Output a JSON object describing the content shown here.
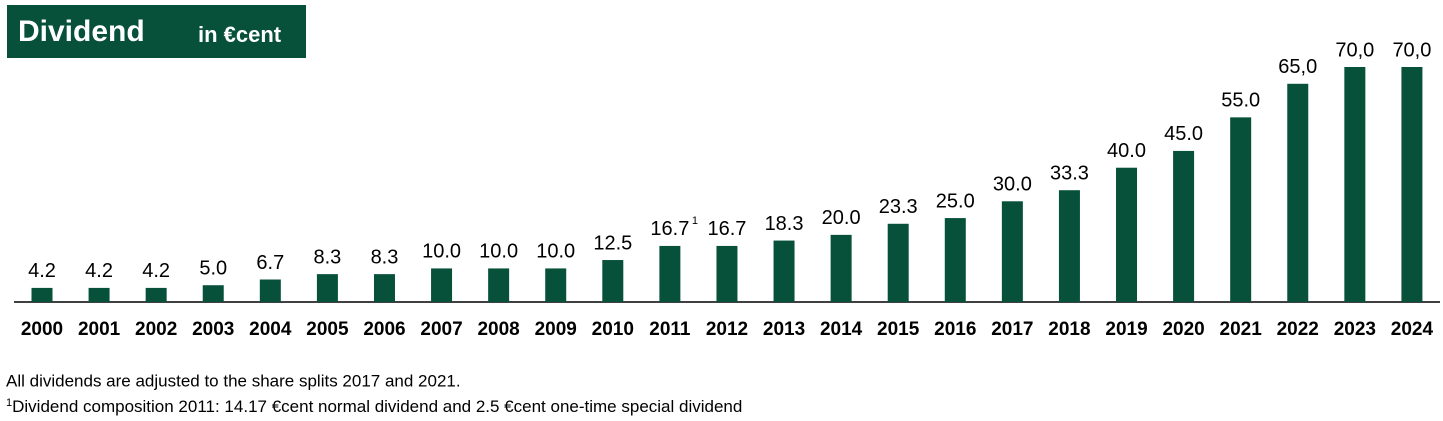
{
  "chart_data": {
    "type": "bar",
    "title": "Dividend",
    "subtitle": "in €cent",
    "categories": [
      "2000",
      "2001",
      "2002",
      "2003",
      "2004",
      "2005",
      "2006",
      "2007",
      "2008",
      "2009",
      "2010",
      "2011",
      "2012",
      "2013",
      "2014",
      "2015",
      "2016",
      "2017",
      "2018",
      "2019",
      "2020",
      "2021",
      "2022",
      "2023",
      "2024"
    ],
    "values": [
      4.2,
      4.2,
      4.2,
      5.0,
      6.7,
      8.3,
      8.3,
      10.0,
      10.0,
      10.0,
      12.5,
      16.7,
      16.7,
      18.3,
      20.0,
      23.3,
      25.0,
      30.0,
      33.3,
      40.0,
      45.0,
      55.0,
      65.0,
      70.0,
      70.0
    ],
    "value_labels": [
      "4.2",
      "4.2",
      "4.2",
      "5.0",
      "6.7",
      "8.3",
      "8.3",
      "10.0",
      "10.0",
      "10.0",
      "12.5",
      "16.7",
      "16.7",
      "18.3",
      "20.0",
      "23.3",
      "25.0",
      "30.0",
      "33.3",
      "40.0",
      "45.0",
      "55.0",
      "65,0",
      "70,0",
      "70,0"
    ],
    "color": "#07513a",
    "ylim": [
      0,
      70
    ],
    "footnote_marker": "1",
    "footnotes": [
      "All dividends are adjusted to the share splits 2017 and 2021.",
      "Dividend composition 2011: 14.17 €cent normal dividend and 2.5 €cent one-time special dividend"
    ]
  }
}
